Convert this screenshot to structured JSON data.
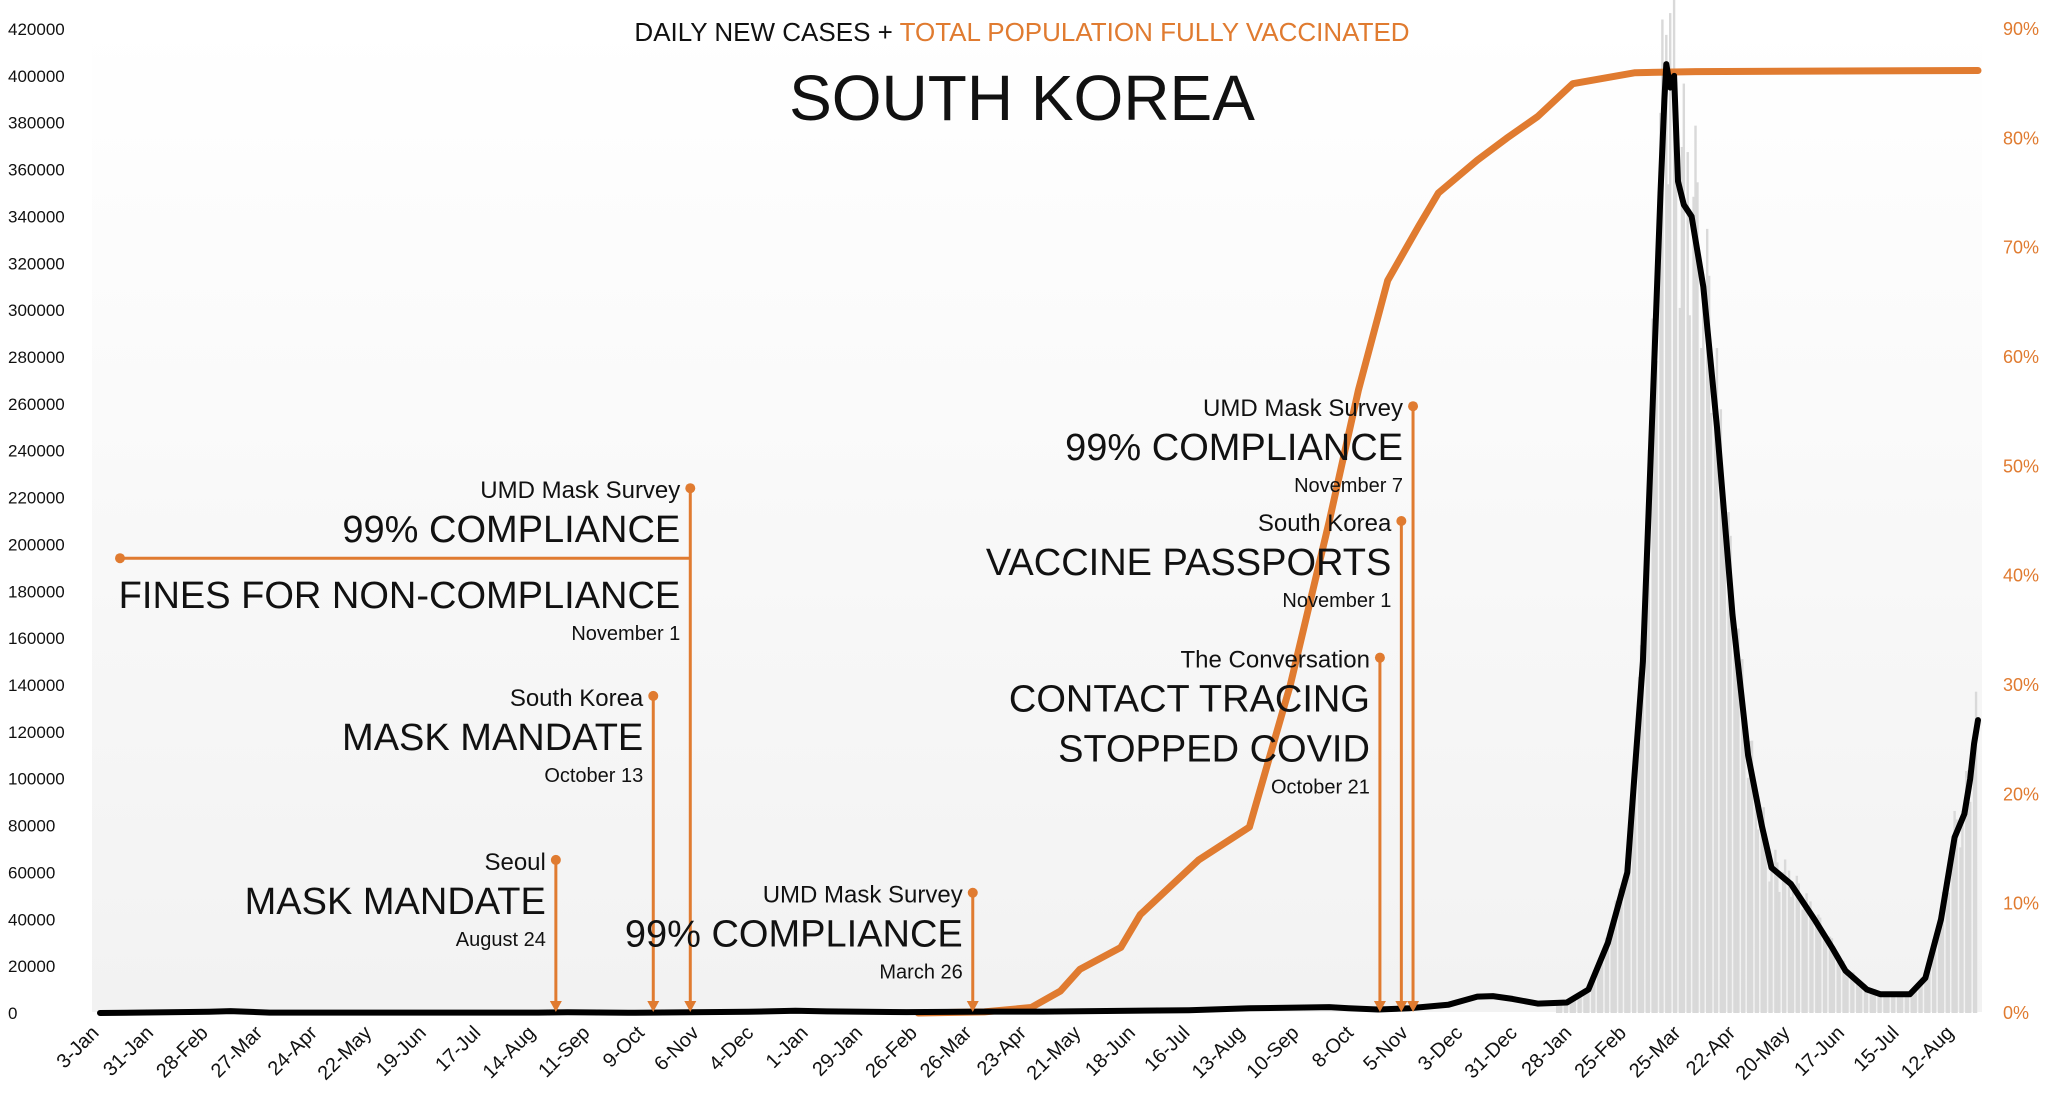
{
  "header": {
    "supertitle_part1": "DAILY NEW CASES + ",
    "supertitle_part2": "TOTAL POPULATION FULLY VACCINATED",
    "title": "SOUTH KOREA"
  },
  "colors": {
    "cases_line": "#000000",
    "vaccinated_line": "#e07b30",
    "annotation": "#e07b30",
    "bars": "#d9d9d9"
  },
  "chart_data": {
    "type": "line",
    "x_kind": "date",
    "x_range": [
      "2020-01-03",
      "2022-08-24"
    ],
    "x_tick_labels": [
      "3-Jan",
      "31-Jan",
      "28-Feb",
      "27-Mar",
      "24-Apr",
      "22-May",
      "19-Jun",
      "17-Jul",
      "14-Aug",
      "11-Sep",
      "9-Oct",
      "6-Nov",
      "4-Dec",
      "1-Jan",
      "29-Jan",
      "26-Feb",
      "26-Mar",
      "23-Apr",
      "21-May",
      "18-Jun",
      "16-Jul",
      "13-Aug",
      "10-Sep",
      "8-Oct",
      "5-Nov",
      "3-Dec",
      "31-Dec",
      "28-Jan",
      "25-Feb",
      "25-Mar",
      "22-Apr",
      "20-May",
      "17-Jun",
      "15-Jul",
      "12-Aug"
    ],
    "y_left": {
      "ylim": [
        0,
        420000
      ],
      "ticks": [
        "0",
        "20000",
        "40000",
        "60000",
        "80000",
        "100000",
        "120000",
        "140000",
        "160000",
        "180000",
        "200000",
        "220000",
        "240000",
        "260000",
        "280000",
        "300000",
        "320000",
        "340000",
        "360000",
        "380000",
        "400000",
        "420000"
      ]
    },
    "y_right": {
      "ylim": [
        0,
        90
      ],
      "unit": "%",
      "ticks": [
        "0%",
        "10%",
        "20%",
        "30%",
        "40%",
        "50%",
        "60%",
        "70%",
        "80%",
        "90%"
      ]
    },
    "grid": false,
    "series": [
      {
        "axis": "left",
        "style": "line",
        "x": [
          "2020-01-03",
          "2020-02-28",
          "2020-03-10",
          "2020-03-30",
          "2020-08-15",
          "2020-08-30",
          "2020-09-30",
          "2020-12-01",
          "2020-12-25",
          "2021-01-10",
          "2021-02-20",
          "2021-04-01",
          "2021-05-01",
          "2021-07-15",
          "2021-08-15",
          "2021-09-25",
          "2021-10-05",
          "2021-10-20",
          "2021-11-05",
          "2021-11-25",
          "2021-12-10",
          "2021-12-18",
          "2021-12-28",
          "2022-01-10",
          "2022-01-25",
          "2022-02-05",
          "2022-02-15",
          "2022-02-25",
          "2022-03-05",
          "2022-03-10",
          "2022-03-14",
          "2022-03-16",
          "2022-03-17",
          "2022-03-19",
          "2022-03-21",
          "2022-03-23",
          "2022-03-26",
          "2022-03-30",
          "2022-04-05",
          "2022-04-12",
          "2022-04-20",
          "2022-04-28",
          "2022-05-05",
          "2022-05-10",
          "2022-05-20",
          "2022-06-01",
          "2022-06-10",
          "2022-06-17",
          "2022-06-28",
          "2022-07-05",
          "2022-07-12",
          "2022-07-20",
          "2022-07-28",
          "2022-08-05",
          "2022-08-12",
          "2022-08-17",
          "2022-08-20",
          "2022-08-22",
          "2022-08-24"
        ],
        "values": [
          0,
          500,
          800,
          150,
          150,
          300,
          100,
          500,
          1000,
          700,
          400,
          600,
          600,
          1200,
          2000,
          2500,
          2000,
          1500,
          2000,
          3500,
          7000,
          7200,
          6000,
          4000,
          4500,
          10000,
          30000,
          60000,
          150000,
          260000,
          350000,
          390000,
          405000,
          395000,
          400000,
          355000,
          345000,
          340000,
          310000,
          250000,
          170000,
          110000,
          80000,
          62000,
          55000,
          40000,
          28000,
          18000,
          10000,
          8000,
          8000,
          8000,
          15000,
          40000,
          75000,
          85000,
          100000,
          115000,
          125000
        ]
      },
      {
        "axis": "right",
        "style": "line",
        "x": [
          "2021-02-26",
          "2021-04-01",
          "2021-04-25",
          "2021-05-10",
          "2021-05-20",
          "2021-06-10",
          "2021-06-20",
          "2021-07-20",
          "2021-08-15",
          "2021-09-05",
          "2021-09-25",
          "2021-10-10",
          "2021-10-25",
          "2021-11-10",
          "2021-11-20",
          "2021-12-10",
          "2021-12-25",
          "2022-01-10",
          "2022-01-28",
          "2022-03-01",
          "2022-04-01",
          "2022-08-24"
        ],
        "values": [
          0,
          0.1,
          0.5,
          2,
          4,
          6,
          9,
          14,
          17,
          30,
          45,
          57,
          67,
          72,
          75,
          78,
          80,
          82,
          85,
          86,
          86.1,
          86.2
        ]
      }
    ],
    "annotations": [
      {
        "source": "Seoul",
        "headline": [
          "MASK MANDATE"
        ],
        "date": "August 24",
        "x": "2020-08-24",
        "marker_pct": 14
      },
      {
        "source": "South Korea",
        "headline": [
          "MASK MANDATE"
        ],
        "date": "October 13",
        "x": "2020-10-13",
        "marker_pct": 29
      },
      {
        "source": "UMD Mask Survey",
        "headline": [
          "99% COMPLIANCE",
          "FINES FOR NON-COMPLIANCE"
        ],
        "date": "November 1",
        "x": "2020-11-01",
        "marker_pct": 48
      },
      {
        "source": "UMD Mask Survey",
        "headline": [
          "99% COMPLIANCE"
        ],
        "date": "March 26",
        "x": "2021-03-26",
        "marker_pct": 11
      },
      {
        "source": "The Conversation",
        "headline": [
          "CONTACT TRACING",
          "STOPPED COVID"
        ],
        "date": "October 21",
        "x": "2021-10-21",
        "marker_pct": 32.5
      },
      {
        "source": "South Korea",
        "headline": [
          "VACCINE PASSPORTS"
        ],
        "date": "November 1",
        "x": "2021-11-01",
        "marker_pct": 45
      },
      {
        "source": "UMD Mask Survey",
        "headline": [
          "99% COMPLIANCE"
        ],
        "date": "November 7",
        "x": "2021-11-07",
        "marker_pct": 55.5
      }
    ]
  }
}
